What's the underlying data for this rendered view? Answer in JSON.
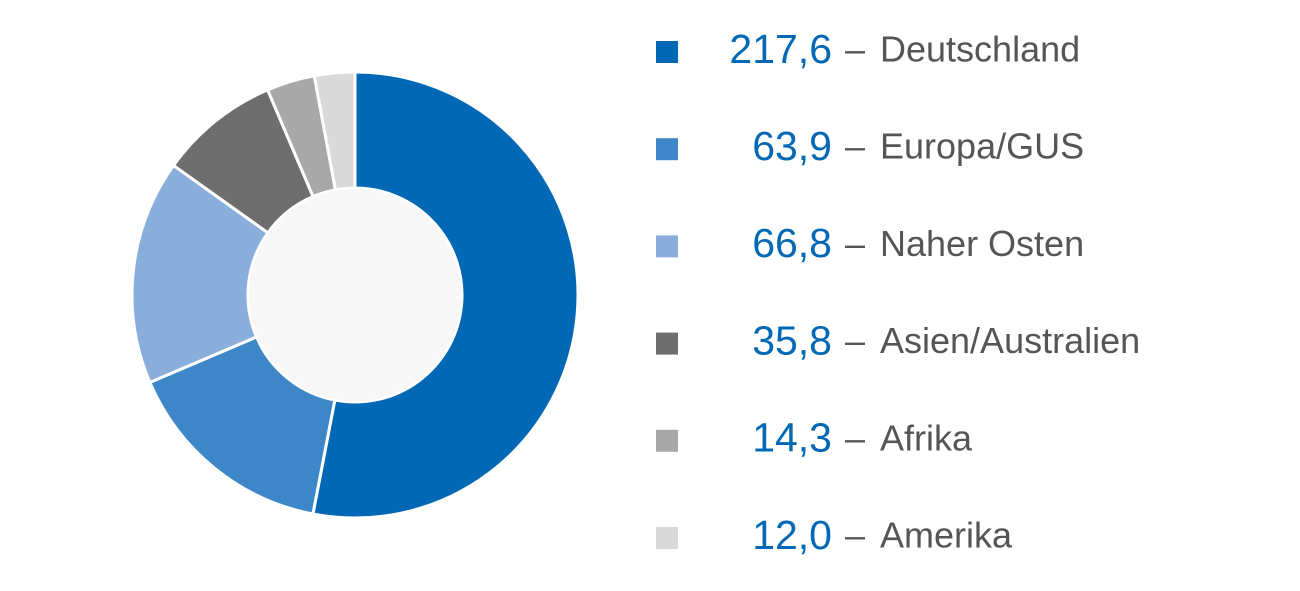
{
  "chart_data": {
    "type": "donut",
    "categories": [
      "Deutschland",
      "Europa/GUS",
      "Naher Osten",
      "Asien/Australien",
      "Afrika",
      "Amerika"
    ],
    "values": [
      217.6,
      63.9,
      66.8,
      35.8,
      14.3,
      12.0
    ],
    "value_labels": [
      "217,6",
      "63,9",
      "66,8",
      "35,8",
      "14,3",
      "12,0"
    ],
    "colors": [
      "#0068b4",
      "#3d87c8",
      "#8aaedc",
      "#6e6e6e",
      "#a8a8a8",
      "#d9d9d9"
    ],
    "label_separator": "–"
  }
}
